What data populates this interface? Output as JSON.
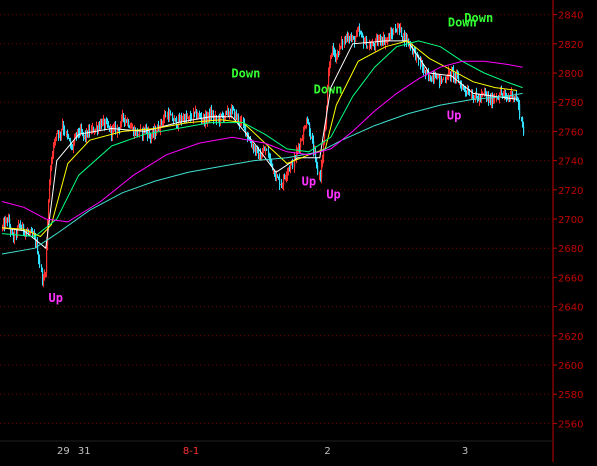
{
  "chart_data": {
    "type": "candlestick",
    "ylim": [
      2550,
      2850
    ],
    "y_ticks": [
      2560,
      2580,
      2600,
      2620,
      2640,
      2660,
      2680,
      2700,
      2720,
      2740,
      2760,
      2780,
      2800,
      2820,
      2840
    ],
    "x_range": [
      0,
      100
    ],
    "x_ticks": [
      {
        "x": 11.2,
        "label": "29",
        "color": "#c0c0c0"
      },
      {
        "x": 15.0,
        "label": "31",
        "color": "#c0c0c0"
      },
      {
        "x": 34.5,
        "label": "8-1",
        "color": "#ff3030"
      },
      {
        "x": 59.4,
        "label": "2",
        "color": "#c0c0c0"
      },
      {
        "x": 84.5,
        "label": "3",
        "color": "#c0c0c0"
      }
    ],
    "grid": true,
    "price_path": [
      [
        0.0,
        2694
      ],
      [
        1.0,
        2700
      ],
      [
        2.0,
        2686
      ],
      [
        3.0,
        2696
      ],
      [
        4.0,
        2692
      ],
      [
        5.0,
        2690
      ],
      [
        6.0,
        2686
      ],
      [
        6.5,
        2678
      ],
      [
        7.0,
        2664
      ],
      [
        7.4,
        2657
      ],
      [
        7.8,
        2666
      ],
      [
        8.2,
        2700
      ],
      [
        8.6,
        2730
      ],
      [
        9.0,
        2745
      ],
      [
        9.5,
        2752
      ],
      [
        10.0,
        2762
      ],
      [
        10.5,
        2756
      ],
      [
        11.0,
        2766
      ],
      [
        11.5,
        2758
      ],
      [
        12.0,
        2754
      ],
      [
        12.5,
        2748
      ],
      [
        13.0,
        2752
      ],
      [
        13.5,
        2758
      ],
      [
        14.0,
        2760
      ],
      [
        15.0,
        2756
      ],
      [
        16.0,
        2760
      ],
      [
        17.0,
        2762
      ],
      [
        18.0,
        2766
      ],
      [
        19.0,
        2764
      ],
      [
        20.0,
        2760
      ],
      [
        21.0,
        2762
      ],
      [
        22.0,
        2770
      ],
      [
        23.0,
        2766
      ],
      [
        24.0,
        2760
      ],
      [
        25.0,
        2758
      ],
      [
        26.0,
        2762
      ],
      [
        27.0,
        2756
      ],
      [
        28.0,
        2760
      ],
      [
        29.0,
        2766
      ],
      [
        30.0,
        2772
      ],
      [
        31.0,
        2768
      ],
      [
        32.0,
        2766
      ],
      [
        33.0,
        2770
      ],
      [
        34.0,
        2768
      ],
      [
        35.0,
        2772
      ],
      [
        36.0,
        2770
      ],
      [
        37.0,
        2768
      ],
      [
        38.0,
        2772
      ],
      [
        39.0,
        2768
      ],
      [
        40.0,
        2770
      ],
      [
        41.0,
        2772
      ],
      [
        42.0,
        2774
      ],
      [
        43.0,
        2768
      ],
      [
        44.0,
        2764
      ],
      [
        45.0,
        2754
      ],
      [
        46.0,
        2748
      ],
      [
        47.0,
        2742
      ],
      [
        48.0,
        2748
      ],
      [
        49.0,
        2738
      ],
      [
        50.0,
        2728
      ],
      [
        51.0,
        2724
      ],
      [
        52.0,
        2734
      ],
      [
        53.0,
        2738
      ],
      [
        54.0,
        2750
      ],
      [
        55.0,
        2760
      ],
      [
        55.5,
        2770
      ],
      [
        56.0,
        2762
      ],
      [
        57.0,
        2744
      ],
      [
        57.5,
        2732
      ],
      [
        58.0,
        2730
      ],
      [
        58.5,
        2750
      ],
      [
        59.0,
        2770
      ],
      [
        59.5,
        2800
      ],
      [
        60.0,
        2816
      ],
      [
        61.0,
        2812
      ],
      [
        62.0,
        2820
      ],
      [
        63.0,
        2826
      ],
      [
        64.0,
        2822
      ],
      [
        65.0,
        2828
      ],
      [
        66.0,
        2822
      ],
      [
        67.0,
        2818
      ],
      [
        68.0,
        2820
      ],
      [
        69.0,
        2824
      ],
      [
        70.0,
        2822
      ],
      [
        71.0,
        2826
      ],
      [
        72.0,
        2832
      ],
      [
        73.0,
        2826
      ],
      [
        74.0,
        2822
      ],
      [
        75.0,
        2816
      ],
      [
        76.0,
        2808
      ],
      [
        77.0,
        2800
      ],
      [
        78.0,
        2796
      ],
      [
        79.0,
        2800
      ],
      [
        80.0,
        2794
      ],
      [
        81.0,
        2798
      ],
      [
        82.0,
        2800
      ],
      [
        83.0,
        2796
      ],
      [
        84.0,
        2790
      ],
      [
        85.0,
        2788
      ],
      [
        86.0,
        2784
      ],
      [
        87.0,
        2782
      ],
      [
        88.0,
        2786
      ],
      [
        89.0,
        2780
      ],
      [
        90.0,
        2784
      ],
      [
        91.0,
        2786
      ],
      [
        92.0,
        2782
      ],
      [
        93.0,
        2786
      ],
      [
        94.0,
        2782
      ],
      [
        95.0,
        2760
      ]
    ],
    "moving_averages": [
      {
        "color": "#ffffff",
        "points": [
          [
            0,
            2694
          ],
          [
            4,
            2692
          ],
          [
            6,
            2686
          ],
          [
            8,
            2680
          ],
          [
            10,
            2740
          ],
          [
            14,
            2758
          ],
          [
            20,
            2762
          ],
          [
            26,
            2760
          ],
          [
            32,
            2766
          ],
          [
            38,
            2770
          ],
          [
            42,
            2770
          ],
          [
            46,
            2752
          ],
          [
            50,
            2732
          ],
          [
            54,
            2742
          ],
          [
            58,
            2742
          ],
          [
            60,
            2790
          ],
          [
            64,
            2820
          ],
          [
            70,
            2822
          ],
          [
            74,
            2822
          ],
          [
            78,
            2800
          ],
          [
            82,
            2798
          ],
          [
            86,
            2786
          ],
          [
            90,
            2784
          ],
          [
            94,
            2782
          ]
        ]
      },
      {
        "color": "#ffff00",
        "points": [
          [
            0,
            2694
          ],
          [
            4,
            2693
          ],
          [
            7,
            2688
          ],
          [
            9,
            2696
          ],
          [
            12,
            2738
          ],
          [
            16,
            2754
          ],
          [
            22,
            2760
          ],
          [
            28,
            2762
          ],
          [
            34,
            2766
          ],
          [
            40,
            2768
          ],
          [
            44,
            2766
          ],
          [
            48,
            2752
          ],
          [
            52,
            2738
          ],
          [
            56,
            2744
          ],
          [
            59,
            2748
          ],
          [
            61,
            2778
          ],
          [
            65,
            2808
          ],
          [
            70,
            2818
          ],
          [
            74,
            2822
          ],
          [
            78,
            2810
          ],
          [
            82,
            2802
          ],
          [
            86,
            2794
          ],
          [
            90,
            2790
          ],
          [
            94,
            2788
          ]
        ]
      },
      {
        "color": "#00ff7f",
        "points": [
          [
            0,
            2690
          ],
          [
            6,
            2688
          ],
          [
            10,
            2700
          ],
          [
            14,
            2730
          ],
          [
            20,
            2750
          ],
          [
            26,
            2758
          ],
          [
            32,
            2762
          ],
          [
            38,
            2766
          ],
          [
            44,
            2766
          ],
          [
            48,
            2758
          ],
          [
            52,
            2748
          ],
          [
            56,
            2746
          ],
          [
            60,
            2756
          ],
          [
            64,
            2784
          ],
          [
            68,
            2804
          ],
          [
            72,
            2818
          ],
          [
            76,
            2822
          ],
          [
            80,
            2818
          ],
          [
            84,
            2808
          ],
          [
            88,
            2800
          ],
          [
            92,
            2794
          ],
          [
            95,
            2790
          ]
        ]
      },
      {
        "color": "#40e0d0",
        "points": [
          [
            0,
            2676
          ],
          [
            6,
            2680
          ],
          [
            10,
            2690
          ],
          [
            16,
            2706
          ],
          [
            22,
            2718
          ],
          [
            28,
            2726
          ],
          [
            34,
            2732
          ],
          [
            40,
            2736
          ],
          [
            46,
            2740
          ],
          [
            52,
            2742
          ],
          [
            58,
            2746
          ],
          [
            62,
            2754
          ],
          [
            68,
            2764
          ],
          [
            74,
            2772
          ],
          [
            80,
            2778
          ],
          [
            86,
            2782
          ],
          [
            92,
            2784
          ],
          [
            95,
            2786
          ]
        ]
      },
      {
        "color": "#ff00ff",
        "points": [
          [
            0,
            2712
          ],
          [
            4,
            2708
          ],
          [
            8,
            2700
          ],
          [
            12,
            2698
          ],
          [
            18,
            2712
          ],
          [
            24,
            2730
          ],
          [
            30,
            2744
          ],
          [
            36,
            2752
          ],
          [
            42,
            2756
          ],
          [
            48,
            2752
          ],
          [
            52,
            2746
          ],
          [
            56,
            2744
          ],
          [
            60,
            2748
          ],
          [
            64,
            2760
          ],
          [
            68,
            2774
          ],
          [
            72,
            2786
          ],
          [
            76,
            2796
          ],
          [
            80,
            2804
          ],
          [
            84,
            2808
          ],
          [
            88,
            2808
          ],
          [
            92,
            2806
          ],
          [
            95,
            2804
          ]
        ]
      }
    ],
    "annotations": [
      {
        "text": "Up",
        "x": 9.8,
        "y": 2643,
        "color": "#ff33ff"
      },
      {
        "text": "Down",
        "x": 44.5,
        "y": 2797,
        "color": "#33ff33"
      },
      {
        "text": "Down",
        "x": 59.5,
        "y": 2786,
        "color": "#33ff33"
      },
      {
        "text": "Up",
        "x": 56.0,
        "y": 2723,
        "color": "#ff33ff"
      },
      {
        "text": "Up",
        "x": 60.5,
        "y": 2714,
        "color": "#ff33ff"
      },
      {
        "text": "Down",
        "x": 84.0,
        "y": 2832,
        "color": "#33ff33"
      },
      {
        "text": "Down",
        "x": 87.0,
        "y": 2835,
        "color": "#33ff33"
      },
      {
        "text": "Up",
        "x": 82.5,
        "y": 2768,
        "color": "#ff33ff"
      }
    ]
  },
  "style": {
    "background": "#000000",
    "grid_color": "#7a0000",
    "axis_color": "#c00000",
    "tick_label_color": "#c00000",
    "candle_up": "#ff3030",
    "candle_down": "#30e0ff"
  }
}
